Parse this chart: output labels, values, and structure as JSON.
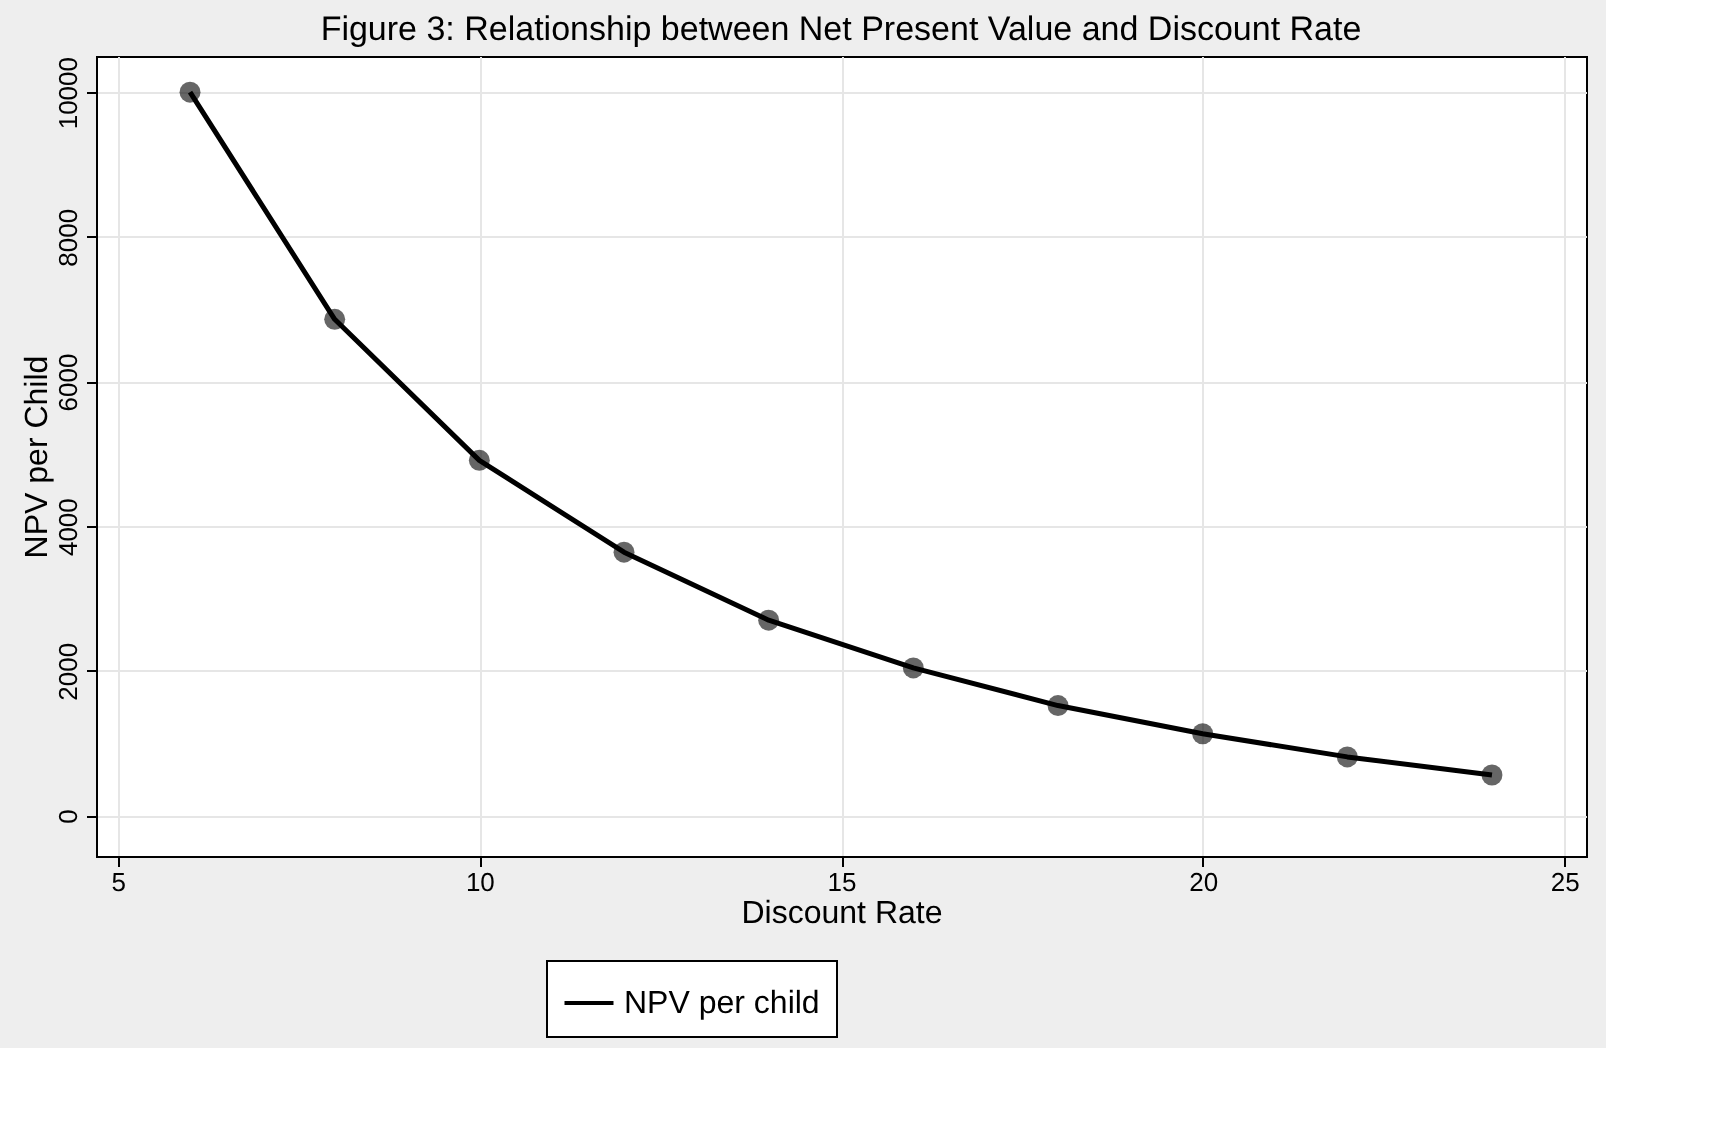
{
  "chart_data": {
    "type": "line",
    "title": "Figure 3: Relationship between Net Present Value and Discount Rate",
    "xlabel": "Discount Rate",
    "ylabel": "NPV per Child",
    "x": [
      6,
      8,
      10,
      12,
      14,
      16,
      18,
      20,
      22,
      24
    ],
    "series": [
      {
        "name": "NPV per child",
        "color": "#000000",
        "values": [
          10000,
          6860,
          4910,
          3640,
          2700,
          2040,
          1520,
          1130,
          810,
          560
        ]
      }
    ],
    "xlim": [
      4.7,
      25.3
    ],
    "xticks": [
      5,
      10,
      15,
      20,
      25
    ],
    "ylim": [
      -560,
      10500
    ],
    "yticks": [
      0,
      2000,
      4000,
      6000,
      8000,
      10000
    ],
    "grid": true,
    "legend": "bottom",
    "marker": "circle",
    "line_style": "solid"
  }
}
